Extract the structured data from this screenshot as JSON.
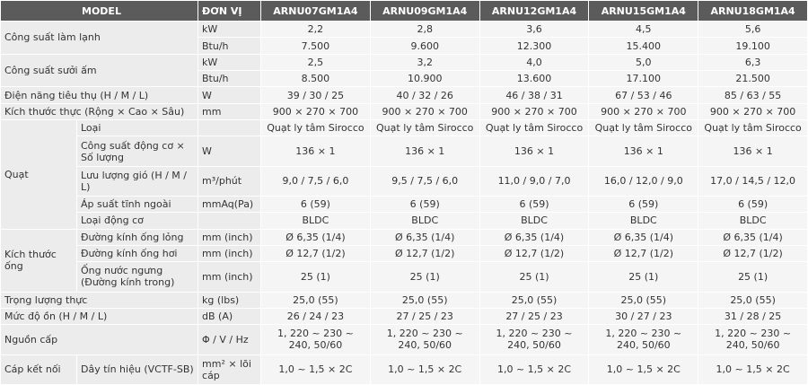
{
  "header": {
    "model": "MODEL",
    "unit": "ĐƠN VỊ",
    "models": [
      "ARNU07GM1A4",
      "ARNU09GM1A4",
      "ARNU12GM1A4",
      "ARNU15GM1A4",
      "ARNU18GM1A4"
    ]
  },
  "groups": [
    {
      "label": "Công suất làm lạnh",
      "items": [
        {
          "unit": "kW",
          "values": [
            "2,2",
            "2,8",
            "3,6",
            "4,5",
            "5,6"
          ]
        },
        {
          "unit": "Btu/h",
          "values": [
            "7.500",
            "9.600",
            "12.300",
            "15.400",
            "19.100"
          ]
        }
      ]
    },
    {
      "label": "Công suất sưởi ấm",
      "items": [
        {
          "unit": "kW",
          "values": [
            "2,5",
            "3,2",
            "4,0",
            "5,0",
            "6,3"
          ]
        },
        {
          "unit": "Btu/h",
          "values": [
            "8.500",
            "10.900",
            "13.600",
            "17.100",
            "21.500"
          ]
        }
      ]
    },
    {
      "label": "Điện năng tiêu thụ (H / M / L)",
      "items": [
        {
          "unit": "W",
          "values": [
            "39 / 30 / 25",
            "40 / 32 / 26",
            "46 / 38 / 31",
            "67 / 53 / 46",
            "85 / 63 / 55"
          ]
        }
      ]
    },
    {
      "label": "Kích thước thực (Rộng × Cao × Sâu)",
      "items": [
        {
          "unit": "mm",
          "values": [
            "900 × 270 × 700",
            "900 × 270 × 700",
            "900 × 270 × 700",
            "900 × 270 × 700",
            "900 × 270 × 700"
          ]
        }
      ]
    },
    {
      "label": "Quạt",
      "items": [
        {
          "sub": "Loại",
          "values": [
            "Quạt ly tâm Sirocco",
            "Quạt ly tâm Sirocco",
            "Quạt ly tâm Sirocco",
            "Quạt ly tâm Sirocco",
            "Quạt ly tâm Sirocco"
          ]
        },
        {
          "sub": "Công suất động cơ × Số lượng",
          "unit": "W",
          "values": [
            "136 × 1",
            "136 × 1",
            "136 × 1",
            "136 × 1",
            "136 × 1"
          ]
        },
        {
          "sub": "Lưu lượng gió (H / M / L)",
          "unit": "m³/phút",
          "values": [
            "9,0 / 7,5 / 6,0",
            "9,5 / 7,5 / 6,0",
            "11,0 / 9,0 / 7,0",
            "16,0 / 12,0 / 9,0",
            "17,0 / 14,5 / 12,0"
          ]
        },
        {
          "sub": "Áp suất tĩnh ngoài",
          "unit": "mmAq(Pa)",
          "values": [
            "6 (59)",
            "6 (59)",
            "6 (59)",
            "6 (59)",
            "6 (59)"
          ]
        },
        {
          "sub": "Loại động cơ",
          "values": [
            "BLDC",
            "BLDC",
            "BLDC",
            "BLDC",
            "BLDC"
          ]
        }
      ]
    },
    {
      "label": "Kích thước ống",
      "items": [
        {
          "sub": "Đường kính ống lỏng",
          "unit": "mm (inch)",
          "values": [
            "Ø 6,35 (1/4)",
            "Ø 6,35 (1/4)",
            "Ø 6,35 (1/4)",
            "Ø 6,35 (1/4)",
            "Ø 6,35 (1/4)"
          ]
        },
        {
          "sub": "Đường kính ống hơi",
          "unit": "mm (inch)",
          "values": [
            "Ø 12,7 (1/2)",
            "Ø 12,7 (1/2)",
            "Ø 12,7 (1/2)",
            "Ø 12,7 (1/2)",
            "Ø 12,7 (1/2)"
          ]
        },
        {
          "sub": "Ống nước ngưng (Đường kính trong)",
          "unit": "mm (inch)",
          "values": [
            "25 (1)",
            "25 (1)",
            "25 (1)",
            "25 (1)",
            "25 (1)"
          ]
        }
      ]
    },
    {
      "label": "Trọng lượng thực",
      "items": [
        {
          "unit": "kg (lbs)",
          "values": [
            "25,0 (55)",
            "25,0 (55)",
            "25,0 (55)",
            "25,0 (55)",
            "25,0 (55)"
          ]
        }
      ]
    },
    {
      "label": "Mức độ ồn (H / M / L)",
      "items": [
        {
          "unit": "dB (A)",
          "values": [
            "26 / 24 / 23",
            "27 / 25 / 23",
            "27 / 25 / 23",
            "30 / 27 / 23",
            "31 / 28 / 25"
          ]
        }
      ]
    },
    {
      "label": "Nguồn cấp",
      "items": [
        {
          "unit": "Φ / V / Hz",
          "values": [
            "1, 220 ~ 230 ~ 240, 50/60",
            "1, 220 ~ 230 ~ 240, 50/60",
            "1, 220 ~ 230 ~ 240, 50/60",
            "1, 220 ~ 230 ~ 240, 50/60",
            "1, 220 ~ 230 ~ 240, 50/60"
          ]
        }
      ]
    },
    {
      "label": "Cáp kết nối",
      "items": [
        {
          "sub": "Dây tín hiệu (VCTF-SB)",
          "unit": "mm² × lõi cáp",
          "values": [
            "1,0 ~ 1,5 × 2C",
            "1,0 ~ 1,5 × 2C",
            "1,0 ~ 1,5 × 2C",
            "1,0 ~ 1,5 × 2C",
            "1,0 ~ 1,5 × 2C"
          ]
        }
      ]
    }
  ]
}
